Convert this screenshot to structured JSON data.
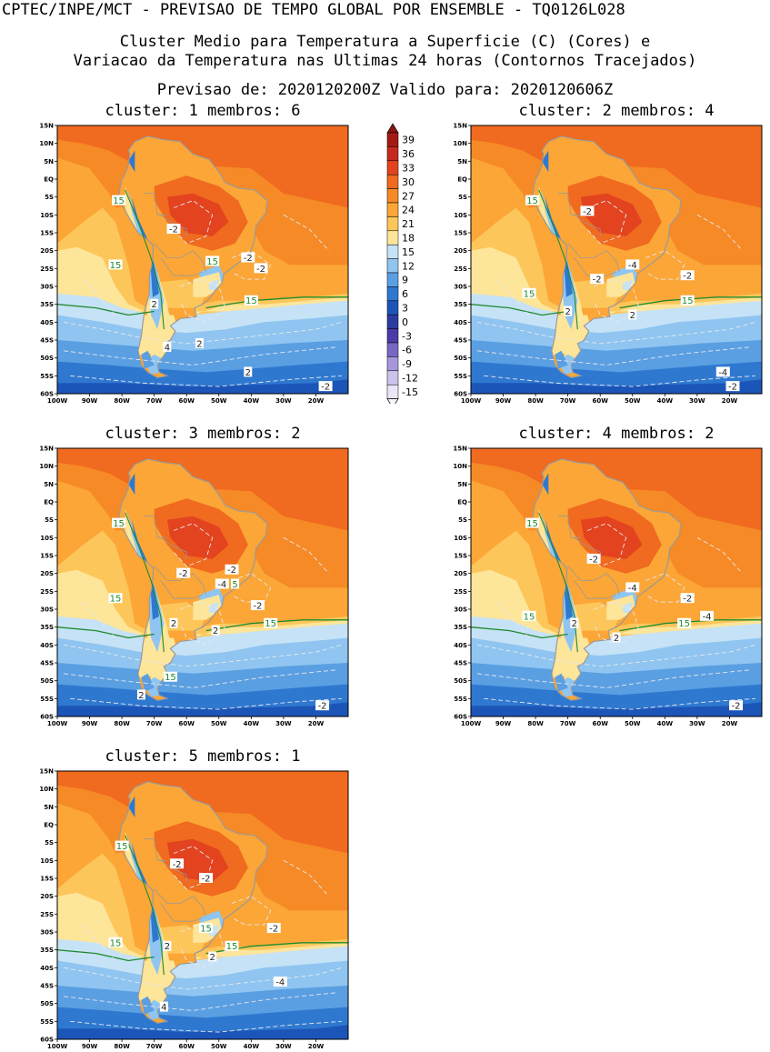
{
  "header": {
    "line1": "CPTEC/INPE/MCT - PREVISAO DE TEMPO GLOBAL POR ENSEMBLE - TQ0126L028",
    "line2": "Cluster Medio para Temperatura a Superficie (C) (Cores) e",
    "line3": "Variacao da Temperatura nas Ultimas 24 horas (Contornos Tracejados)",
    "line4": "Previsao de: 2020120200Z   Valido para: 2020120606Z"
  },
  "axes": {
    "lat_labels": [
      "15N",
      "10N",
      "5N",
      "EQ",
      "5S",
      "10S",
      "15S",
      "20S",
      "25S",
      "30S",
      "35S",
      "40S",
      "45S",
      "50S",
      "55S",
      "60S"
    ],
    "lon_labels": [
      "100W",
      "90W",
      "80W",
      "70W",
      "60W",
      "50W",
      "40W",
      "30W",
      "20W"
    ]
  },
  "colorbar": {
    "labels": [
      "39",
      "36",
      "33",
      "30",
      "27",
      "24",
      "21",
      "18",
      "15",
      "12",
      "9",
      "6",
      "3",
      "0",
      "-3",
      "-6",
      "-9",
      "-12",
      "-15"
    ],
    "colors": [
      "#a31b12",
      "#c62a1e",
      "#e3431f",
      "#f06a1f",
      "#f68a26",
      "#fba636",
      "#fdc65a",
      "#fde59a",
      "#c6e2f6",
      "#8fc5f0",
      "#5a9fe2",
      "#2f78d0",
      "#1c55b8",
      "#2a3d9e",
      "#4a3ba8",
      "#7a67c4",
      "#a797da",
      "#cdc2ec",
      "#ebe6f7"
    ]
  },
  "panels": [
    {
      "title": "cluster: 1   membros: 6",
      "labels": [
        {
          "t": "15",
          "c": "g",
          "lon": -81,
          "lat": -6
        },
        {
          "t": "-2",
          "c": "w",
          "lon": -64,
          "lat": -14
        },
        {
          "t": "15",
          "c": "g",
          "lon": -82,
          "lat": -24
        },
        {
          "t": "15",
          "c": "g",
          "lon": -52,
          "lat": -23
        },
        {
          "t": "-2",
          "c": "w",
          "lon": -41,
          "lat": -22
        },
        {
          "t": "-2",
          "c": "w",
          "lon": -37,
          "lat": -25
        },
        {
          "t": "15",
          "c": "g",
          "lon": -40,
          "lat": -34
        },
        {
          "t": "2",
          "c": "w",
          "lon": -70,
          "lat": -35
        },
        {
          "t": "4",
          "c": "w",
          "lon": -66,
          "lat": -47
        },
        {
          "t": "2",
          "c": "w",
          "lon": -56,
          "lat": -46
        },
        {
          "t": "2",
          "c": "w",
          "lon": -41,
          "lat": -54
        },
        {
          "t": "-2",
          "c": "w",
          "lon": -17,
          "lat": -58
        }
      ]
    },
    {
      "title": "cluster: 2   membros: 4",
      "labels": [
        {
          "t": "15",
          "c": "g",
          "lon": -81,
          "lat": -6
        },
        {
          "t": "-2",
          "c": "w",
          "lon": -64,
          "lat": -9
        },
        {
          "t": "-4",
          "c": "w",
          "lon": -50,
          "lat": -24
        },
        {
          "t": "-2",
          "c": "w",
          "lon": -61,
          "lat": -28
        },
        {
          "t": "-2",
          "c": "w",
          "lon": -33,
          "lat": -27
        },
        {
          "t": "15",
          "c": "g",
          "lon": -82,
          "lat": -32
        },
        {
          "t": "15",
          "c": "g",
          "lon": -33,
          "lat": -34
        },
        {
          "t": "2",
          "c": "w",
          "lon": -70,
          "lat": -37
        },
        {
          "t": "2",
          "c": "w",
          "lon": -50,
          "lat": -38
        },
        {
          "t": "-4",
          "c": "w",
          "lon": -22,
          "lat": -54
        },
        {
          "t": "-2",
          "c": "w",
          "lon": -19,
          "lat": -58
        }
      ]
    },
    {
      "title": "cluster: 3   membros: 2",
      "labels": [
        {
          "t": "15",
          "c": "g",
          "lon": -81,
          "lat": -6
        },
        {
          "t": "-2",
          "c": "w",
          "lon": -61,
          "lat": -20
        },
        {
          "t": "-2",
          "c": "w",
          "lon": -46,
          "lat": -19
        },
        {
          "t": "-4",
          "c": "w",
          "lon": -49,
          "lat": -23
        },
        {
          "t": "5",
          "c": "g",
          "lon": -45,
          "lat": -23
        },
        {
          "t": "15",
          "c": "g",
          "lon": -82,
          "lat": -27
        },
        {
          "t": "-2",
          "c": "w",
          "lon": -38,
          "lat": -29
        },
        {
          "t": "15",
          "c": "g",
          "lon": -34,
          "lat": -34
        },
        {
          "t": "2",
          "c": "w",
          "lon": -64,
          "lat": -34
        },
        {
          "t": "2",
          "c": "w",
          "lon": -51,
          "lat": -36
        },
        {
          "t": "15",
          "c": "g",
          "lon": -65,
          "lat": -49
        },
        {
          "t": "2",
          "c": "w",
          "lon": -74,
          "lat": -54
        },
        {
          "t": "-2",
          "c": "w",
          "lon": -18,
          "lat": -57
        }
      ]
    },
    {
      "title": "cluster: 4   membros: 2",
      "labels": [
        {
          "t": "15",
          "c": "g",
          "lon": -81,
          "lat": -6
        },
        {
          "t": "-2",
          "c": "w",
          "lon": -62,
          "lat": -16
        },
        {
          "t": "-4",
          "c": "w",
          "lon": -50,
          "lat": -24
        },
        {
          "t": "-2",
          "c": "w",
          "lon": -33,
          "lat": -27
        },
        {
          "t": "-4",
          "c": "w",
          "lon": -27,
          "lat": -32
        },
        {
          "t": "15",
          "c": "g",
          "lon": -82,
          "lat": -32
        },
        {
          "t": "15",
          "c": "g",
          "lon": -34,
          "lat": -34
        },
        {
          "t": "2",
          "c": "w",
          "lon": -68,
          "lat": -34
        },
        {
          "t": "2",
          "c": "w",
          "lon": -55,
          "lat": -38
        },
        {
          "t": "-2",
          "c": "w",
          "lon": -18,
          "lat": -57
        }
      ]
    },
    {
      "title": "cluster: 5   membros: 1",
      "labels": [
        {
          "t": "15",
          "c": "g",
          "lon": -80,
          "lat": -6
        },
        {
          "t": "-2",
          "c": "w",
          "lon": -63,
          "lat": -11
        },
        {
          "t": "-2",
          "c": "w",
          "lon": -54,
          "lat": -15
        },
        {
          "t": "15",
          "c": "g",
          "lon": -54,
          "lat": -29
        },
        {
          "t": "-2",
          "c": "w",
          "lon": -33,
          "lat": -29
        },
        {
          "t": "15",
          "c": "g",
          "lon": -82,
          "lat": -33
        },
        {
          "t": "2",
          "c": "w",
          "lon": -66,
          "lat": -34
        },
        {
          "t": "15",
          "c": "g",
          "lon": -46,
          "lat": -34
        },
        {
          "t": "2",
          "c": "w",
          "lon": -52,
          "lat": -37
        },
        {
          "t": "-4",
          "c": "w",
          "lon": -31,
          "lat": -44
        },
        {
          "t": "4",
          "c": "w",
          "lon": -67,
          "lat": -51
        }
      ]
    }
  ]
}
